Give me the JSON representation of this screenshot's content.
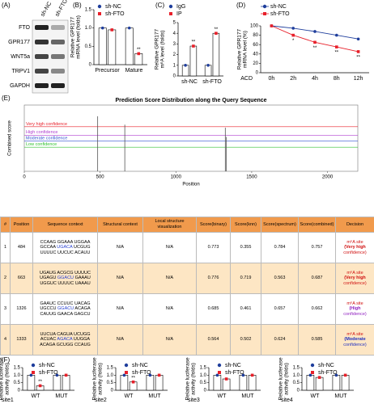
{
  "blot": {
    "panel": "(A)",
    "lanes": [
      "sh-NC",
      "sh-FTO"
    ],
    "rows": [
      "FTO",
      "GPR177",
      "WNT5a",
      "TRPV1",
      "GAPDH"
    ]
  },
  "chart_data": [
    {
      "type": "bar",
      "panel": "(B)",
      "ylabel": [
        "Relative GPR177",
        "mRNA level (folds)"
      ],
      "categories": [
        "Precursor",
        "Mature"
      ],
      "series": [
        {
          "name": "sh-NC",
          "color": "#1f3e9c",
          "values": [
            1.0,
            1.0
          ]
        },
        {
          "name": "sh-FTO",
          "color": "#e8202a",
          "values": [
            0.95,
            0.3
          ]
        }
      ],
      "ylim": [
        0,
        1.5
      ],
      "yticks": [
        0,
        0.5,
        {
          "value": 1,
          "label": "1.0"
        },
        1.5
      ],
      "annotations": [
        {
          "text": "**",
          "series": "sh-FTO",
          "category": "Mature"
        }
      ]
    },
    {
      "type": "bar",
      "panel": "(C)",
      "ylabel": [
        "Relative GPR177",
        "m⁶A level (folds)"
      ],
      "categories": [
        "sh-NC",
        "sh-FTO"
      ],
      "series": [
        {
          "name": "IgG",
          "color": "#1f3e9c",
          "values": [
            1.0,
            1.0
          ]
        },
        {
          "name": "IP",
          "color": "#e8202a",
          "values": [
            2.8,
            4.0
          ]
        }
      ],
      "ylim": [
        0,
        5
      ],
      "yticks": [
        0,
        1,
        2,
        3,
        4,
        5
      ],
      "annotations": [
        {
          "text": "**",
          "series": "IP",
          "category": "sh-NC"
        },
        {
          "text": "**",
          "series": "IP",
          "category": "sh-FTO"
        }
      ]
    },
    {
      "type": "line",
      "panel": "(D)",
      "ylabel": [
        "Relative GPR177",
        "mRNA level (%)"
      ],
      "xlabel": "ACD",
      "categories": [
        "0h",
        "2h",
        "4h",
        "8h",
        "12h"
      ],
      "series": [
        {
          "name": "sh-NC",
          "color": "#1f3e9c",
          "values": [
            100,
            95,
            88,
            80,
            72
          ]
        },
        {
          "name": "sh-FTO",
          "color": "#e8202a",
          "values": [
            100,
            80,
            65,
            55,
            45
          ]
        }
      ],
      "ylim": [
        0,
        100
      ],
      "yticks": [
        0,
        20,
        40,
        60,
        80,
        100
      ],
      "annotations": [
        {
          "text": "*",
          "series": "sh-FTO",
          "category": "2h"
        },
        {
          "text": "**",
          "series": "sh-FTO",
          "category": "4h"
        },
        {
          "text": "**",
          "series": "sh-FTO",
          "category": "8h"
        },
        {
          "text": "**",
          "series": "sh-FTO",
          "category": "12h"
        }
      ]
    },
    {
      "type": "spike",
      "panel": "(E)",
      "title": "Prediction Score Distribution along the Query Sequence",
      "xlabel": "Position",
      "ylabel": [
        "Combined score"
      ],
      "x": [
        484,
        663,
        1326,
        1333
      ],
      "values": [
        0.757,
        0.687,
        0.662,
        0.585
      ],
      "color": "#555555",
      "xlim": [
        0,
        2200
      ],
      "xticks": [
        0,
        500,
        1000,
        1500,
        2000
      ],
      "ylim": [
        0.3,
        0.85
      ],
      "thresholds": [
        {
          "name": "Very high confidence",
          "value": 0.67,
          "color": "#e8202a"
        },
        {
          "name": "High confidence",
          "value": 0.6,
          "color": "#b040d0"
        },
        {
          "name": "Moderate confidence",
          "value": 0.55,
          "color": "#3050d0"
        },
        {
          "name": "Low confidence",
          "value": 0.5,
          "color": "#30c030"
        }
      ]
    },
    {
      "type": "bar",
      "panel": "(F)",
      "site": "site1",
      "ylabel": [
        "Relative luciferase",
        "activity (folds)"
      ],
      "categories": [
        "WT",
        "MUT"
      ],
      "series": [
        {
          "name": "sh-NC",
          "color": "#1f3e9c",
          "values": [
            1.0,
            1.0
          ]
        },
        {
          "name": "sh-FTO",
          "color": "#e8202a",
          "values": [
            0.3,
            1.0
          ]
        }
      ],
      "ylim": [
        0,
        1.5
      ],
      "yticks": [
        0,
        0.5,
        {
          "value": 1,
          "label": "1.0"
        },
        1.5
      ],
      "annotations": [
        {
          "text": "**",
          "series": "sh-FTO",
          "category": "WT"
        }
      ]
    },
    {
      "type": "bar",
      "site": "site2",
      "ylabel": [
        "Relative luciferase",
        "activity (folds)"
      ],
      "categories": [
        "WT",
        "MUT"
      ],
      "series": [
        {
          "name": "sh-NC",
          "color": "#1f3e9c",
          "values": [
            1.0,
            1.0
          ]
        },
        {
          "name": "sh-FTO",
          "color": "#e8202a",
          "values": [
            0.55,
            1.0
          ]
        }
      ],
      "ylim": [
        0,
        1.5
      ],
      "yticks": [
        0,
        0.5,
        {
          "value": 1,
          "label": "1.0"
        },
        1.5
      ],
      "annotations": [
        {
          "text": "**",
          "series": "sh-FTO",
          "category": "WT"
        }
      ]
    },
    {
      "type": "bar",
      "site": "site3",
      "ylabel": [
        "Relative luciferase",
        "activity (folds)"
      ],
      "categories": [
        "WT",
        "MUT"
      ],
      "series": [
        {
          "name": "sh-NC",
          "color": "#1f3e9c",
          "values": [
            1.0,
            1.0
          ]
        },
        {
          "name": "sh-FTO",
          "color": "#e8202a",
          "values": [
            0.75,
            1.0
          ]
        }
      ],
      "ylim": [
        0,
        1.5
      ],
      "yticks": [
        0,
        0.5,
        {
          "value": 1,
          "label": "1.0"
        },
        1.5
      ]
    },
    {
      "type": "bar",
      "site": "site4",
      "ylabel": [
        "Relative luciferase",
        "activity (folds)"
      ],
      "categories": [
        "WT",
        "MUT"
      ],
      "series": [
        {
          "name": "sh-NC",
          "color": "#1f3e9c",
          "values": [
            1.0,
            1.0
          ]
        },
        {
          "name": "sh-FTO",
          "color": "#e8202a",
          "values": [
            0.85,
            1.0
          ]
        }
      ],
      "ylim": [
        0,
        1.5
      ],
      "yticks": [
        0,
        0.5,
        {
          "value": 1,
          "label": "1.0"
        },
        1.5
      ]
    }
  ],
  "table": {
    "header": [
      "#",
      "Position",
      "Sequence context",
      "Structural context",
      "Local structure visualization",
      "Score(binary)",
      "Score(knn)",
      "Score(spectrum)",
      "Score(combined)",
      "Decision"
    ],
    "rows": [
      {
        "index": 1,
        "position": 484,
        "sequence": [
          [
            "CCAAG",
            "GGAAA",
            "UGGAA"
          ],
          [
            "GCCAA",
            "UGACA",
            "UCGUG"
          ],
          [
            "UUUUC",
            "UUCUC",
            "ACAUU"
          ]
        ],
        "structural": "N/A",
        "local": "N/A",
        "binary": 0.773,
        "knn": 0.355,
        "spectrum": 0.784,
        "combined": 0.757,
        "decision": [
          "m⁶A site",
          "(Very high",
          "confidence)"
        ],
        "decision_color": "#d01010"
      },
      {
        "index": 2,
        "position": 663,
        "sequence": [
          [
            "UGAUG",
            "ACGCG",
            "UUUUC"
          ],
          [
            "UGAGU",
            "GGACU",
            "GAAAU"
          ],
          [
            "UGGUC",
            "UUUUC",
            "UAAAU"
          ]
        ],
        "structural": "N/A",
        "local": "N/A",
        "binary": 0.776,
        "knn": 0.719,
        "spectrum": 0.563,
        "combined": 0.687,
        "decision": [
          "m⁶A site",
          "(Very high",
          "confidence)"
        ],
        "decision_color": "#d01010"
      },
      {
        "index": 3,
        "position": 1326,
        "sequence": [
          [
            "GAAUC",
            "CCUUC",
            "UACAG"
          ],
          [
            "UGCCU",
            "GGACU",
            "ACAGA"
          ],
          [
            "CAUUG",
            "GAACA",
            "GAGCU"
          ]
        ],
        "structural": "N/A",
        "local": "N/A",
        "binary": 0.685,
        "knn": 0.461,
        "spectrum": 0.657,
        "combined": 0.662,
        "decision": [
          "m⁶A site",
          "(High",
          "confidence)"
        ],
        "decision_color": "#9020c0"
      },
      {
        "index": 4,
        "position": 1333,
        "sequence": [
          [
            "UUCUA",
            "CAGUA",
            "UCUGG"
          ],
          [
            "ACUAC",
            "AGACA",
            "UUGGA"
          ],
          [
            "ACAGA",
            "GCUGG",
            "CCAUG"
          ]
        ],
        "structural": "N/A",
        "local": "N/A",
        "binary": 0.564,
        "knn": 0.502,
        "spectrum": 0.624,
        "combined": 0.585,
        "decision": [
          "m⁶A site",
          "(Moderate",
          "confidence)"
        ],
        "decision_color": "#2030c0"
      }
    ]
  }
}
